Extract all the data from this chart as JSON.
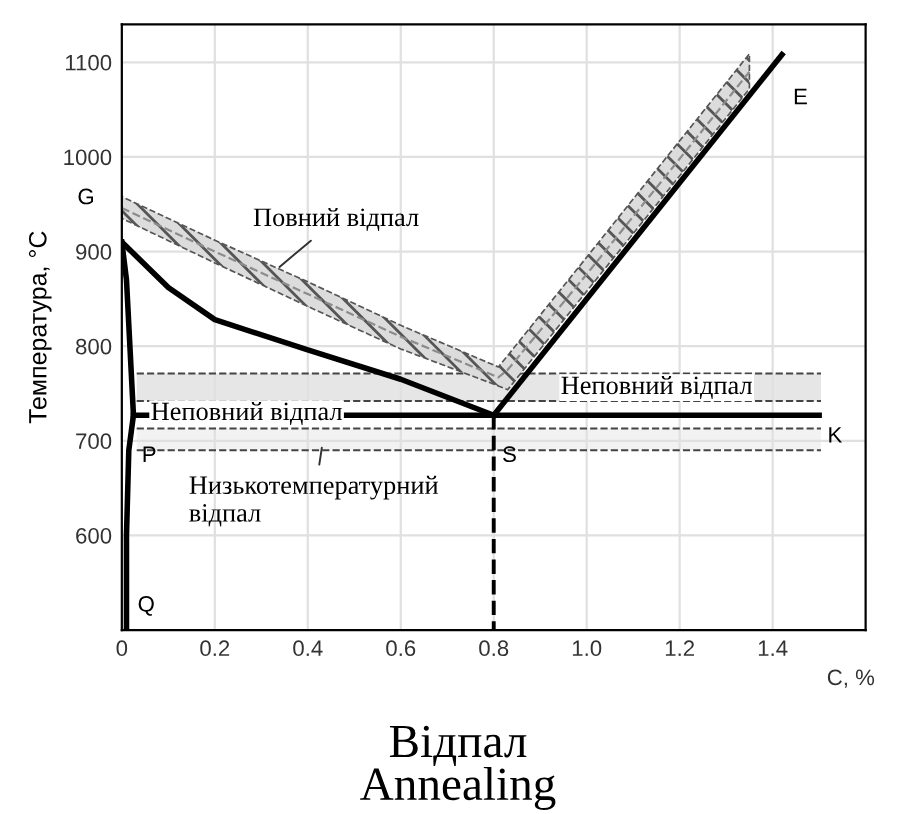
{
  "chart_data": {
    "type": "line",
    "title": "Відпал\nAnnealing",
    "xlabel": "C, %",
    "ylabel": "Температура, °C",
    "xlim": [
      0,
      1.6
    ],
    "ylim": [
      500,
      1140
    ],
    "xticks": [
      0,
      0.2,
      0.4,
      0.6,
      0.8,
      {
        "value": 1.0,
        "label": "1.0"
      },
      1.2,
      1.4
    ],
    "yticks": [
      600,
      700,
      800,
      900,
      1000,
      1100
    ],
    "grid": true,
    "legend": false,
    "marker": "none",
    "series": [
      {
        "color": "#8c8c8c",
        "line_style": "dashed",
        "x": [
          0,
          0.2,
          0.4,
          0.6,
          0.81,
          0.83,
          1.0,
          1.2,
          1.35
        ],
        "values": [
          946,
          900,
          855,
          810,
          767,
          775,
          876,
          998,
          1090
        ],
        "lower": [
          935,
          888,
          842,
          797,
          758,
          754,
          858,
          980,
          1072
        ],
        "upper": [
          958,
          912,
          868,
          822,
          778,
          790,
          894,
          1017,
          1109
        ]
      },
      {
        "color": "#000000",
        "line_style": "solid",
        "x": [
          0,
          0.1,
          0.2,
          0.4,
          0.6,
          0.8
        ],
        "values": [
          910,
          862,
          828,
          796,
          765,
          727
        ]
      },
      {
        "color": "#000000",
        "line_style": "solid",
        "x": [
          0.8,
          1.42
        ],
        "values": [
          727,
          1108
        ]
      },
      {
        "color": "#000000",
        "line_style": "solid",
        "x": [
          0.025,
          1.5
        ],
        "values": [
          727,
          727
        ]
      },
      {
        "color": "#000000",
        "line_style": "solid",
        "x": [
          0,
          0.01,
          0.025,
          0.015,
          0.01,
          0.01
        ],
        "values": [
          910,
          870,
          727,
          690,
          600,
          500
        ]
      },
      {
        "color": "#000000",
        "line_style": "dashed",
        "x": [
          0.8,
          0.8
        ],
        "values": [
          727,
          500
        ]
      }
    ],
    "bands": [
      {
        "axis": "y",
        "from": 742,
        "to": 771,
        "color": "#e6e6e6"
      },
      {
        "axis": "y",
        "from": 690,
        "to": 713,
        "color": "#f2f2f2"
      }
    ],
    "annotations": [
      {
        "text": "G",
        "x": 0,
        "y": 910
      },
      {
        "text": "P",
        "x": 0.025,
        "y": 727
      },
      {
        "text": "S",
        "x": 0.8,
        "y": 727
      },
      {
        "text": "Q",
        "x": 0.01,
        "y": 500
      },
      {
        "text": "E",
        "x": 1.42,
        "y": 1108
      },
      {
        "text": "K",
        "x": 1.5,
        "y": 727
      },
      {
        "text": "Повний відпал",
        "x": 0.33,
        "y": 880
      },
      {
        "text": "Неповний відпал",
        "x": 0.05,
        "y": 756
      },
      "Неповний відпал",
      "Низькотемпературний\nвідпал"
    ]
  }
}
